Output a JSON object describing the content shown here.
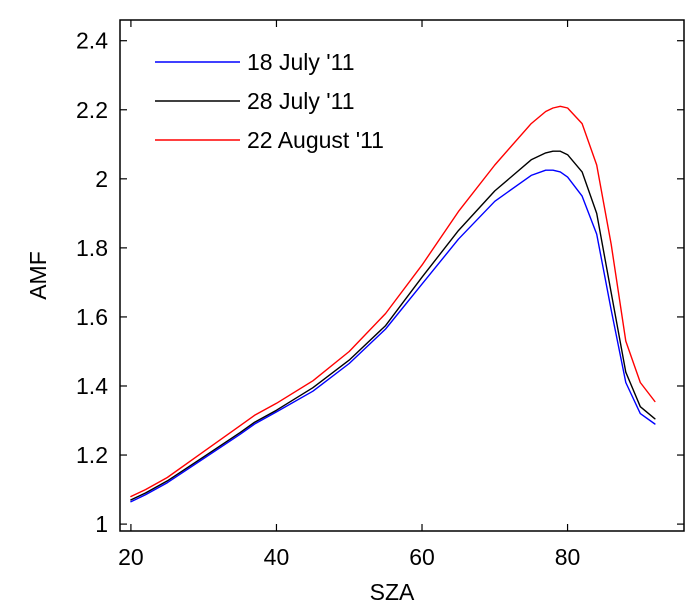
{
  "chart_data": {
    "type": "line",
    "title": "",
    "xlabel": "SZA",
    "ylabel": "AMF",
    "xlim": [
      18.5,
      96
    ],
    "ylim": [
      0.98,
      2.46
    ],
    "xticks": [
      20,
      40,
      60,
      80
    ],
    "xtick_labels": [
      "20",
      "40",
      "60",
      "80"
    ],
    "yticks": [
      1,
      1.2,
      1.4,
      1.6,
      1.8,
      2,
      2.2,
      2.4
    ],
    "ytick_labels": [
      "1",
      "1.2",
      "1.4",
      "1.6",
      "1.8",
      "2",
      "2.2",
      "2.4"
    ],
    "grid": false,
    "legend_position": "top-left",
    "x": [
      20,
      22,
      25,
      30,
      35,
      37,
      40,
      45,
      50,
      55,
      60,
      65,
      70,
      75,
      77,
      78,
      79,
      80,
      82,
      84,
      86,
      88,
      90,
      92
    ],
    "series": [
      {
        "name": "18 July '11",
        "color": "#0000ff",
        "values": [
          1.065,
          1.085,
          1.12,
          1.19,
          1.26,
          1.29,
          1.325,
          1.385,
          1.465,
          1.565,
          1.695,
          1.825,
          1.935,
          2.01,
          2.025,
          2.025,
          2.02,
          2.005,
          1.95,
          1.84,
          1.62,
          1.41,
          1.32,
          1.29
        ]
      },
      {
        "name": "28 July '11",
        "color": "#000000",
        "values": [
          1.07,
          1.09,
          1.125,
          1.195,
          1.265,
          1.295,
          1.33,
          1.395,
          1.475,
          1.575,
          1.715,
          1.85,
          1.965,
          2.055,
          2.075,
          2.08,
          2.08,
          2.07,
          2.02,
          1.9,
          1.67,
          1.44,
          1.34,
          1.305
        ]
      },
      {
        "name": "22 August '11",
        "color": "#ff0000",
        "values": [
          1.08,
          1.1,
          1.135,
          1.21,
          1.285,
          1.315,
          1.35,
          1.415,
          1.5,
          1.61,
          1.75,
          1.905,
          2.04,
          2.16,
          2.195,
          2.205,
          2.21,
          2.205,
          2.16,
          2.04,
          1.81,
          1.53,
          1.41,
          1.355
        ]
      }
    ]
  }
}
